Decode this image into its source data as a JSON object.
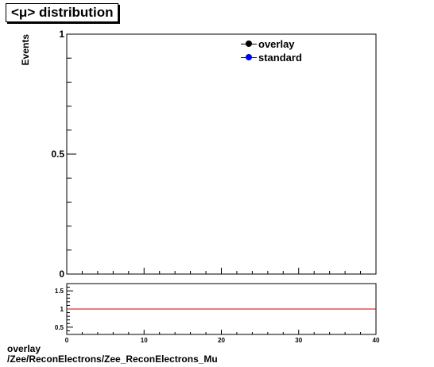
{
  "title": "<μ> distribution",
  "footer": {
    "line1": "overlay",
    "line2": "/Zee/ReconElectrons/Zee_ReconElectrons_Mu"
  },
  "colors": {
    "overlay": "#000000",
    "standard": "#0000ff",
    "ratio_line": "#cc0000"
  },
  "chart_data": [
    {
      "type": "line",
      "ylabel": "Events",
      "xlim": [
        0,
        40
      ],
      "ylim": [
        0,
        1
      ],
      "y_ticks": [
        0,
        0.5,
        1
      ],
      "y_tick_labels": [
        "0",
        "0.5",
        "1"
      ],
      "series": [
        {
          "name": "overlay",
          "values": []
        },
        {
          "name": "standard",
          "values": []
        }
      ],
      "legend_position": "top-right"
    },
    {
      "type": "line",
      "xlim": [
        0,
        40
      ],
      "ylim": [
        0.3,
        1.7
      ],
      "x_ticks": [
        0,
        10,
        20,
        30,
        40
      ],
      "x_tick_labels": [
        "0",
        "10",
        "20",
        "30",
        "40"
      ],
      "y_ticks": [
        0.5,
        1,
        1.5
      ],
      "y_tick_labels": [
        "0.5",
        "1",
        "1.5"
      ],
      "reference_line": 1
    }
  ]
}
